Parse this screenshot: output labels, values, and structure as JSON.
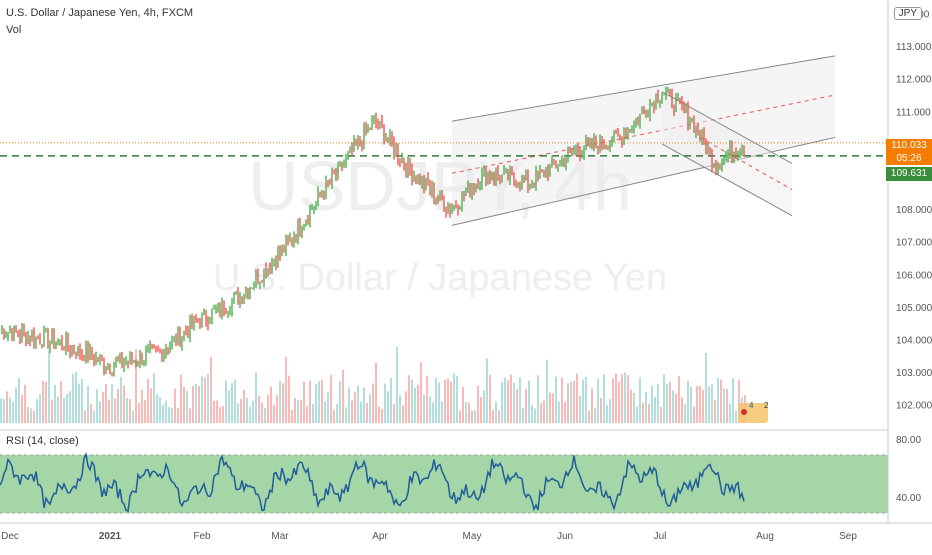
{
  "header": {
    "symbol_title": "U.S. Dollar / Japanese Yen, 4h, FXCM",
    "volume_label": "Vol",
    "currency": "JPY"
  },
  "watermark": {
    "ticker": "USDJPY, 4h",
    "description": "U.S. Dollar / Japanese Yen"
  },
  "rsi": {
    "label": "RSI (14, close)",
    "ticks": [
      "80.00",
      "40.00"
    ]
  },
  "price_axis": {
    "ticks": [
      "1 4.000",
      "113.000",
      "112.000",
      "111.000",
      "110.000",
      "109.000",
      "108.000",
      "107.000",
      "106.000",
      "105.000",
      "104.000",
      "103.000",
      "102.000"
    ],
    "current_price": "110.033",
    "countdown": "05:26",
    "line_price": "109.631"
  },
  "time_axis": {
    "ticks": [
      "Dec",
      "2021",
      "Feb",
      "Mar",
      "Apr",
      "May",
      "Jun",
      "Jul",
      "Aug",
      "Sep"
    ]
  },
  "events": {
    "badge_a": "4",
    "badge_b": "2"
  },
  "colors": {
    "up": "#26a69a",
    "up_candle": "#4caf50",
    "down": "#ef5350",
    "rsi_line": "#1f5c99",
    "rsi_band": "#a5d6a7",
    "level_line": "#2e7d32",
    "price_tag": "#f57c00",
    "line_tag": "#388e3c"
  },
  "chart_data": {
    "type": "line",
    "title": "U.S. Dollar / Japanese Yen, 4h, FXCM",
    "x": [
      "Dec",
      "Dec",
      "2021",
      "Jan",
      "Feb",
      "Feb",
      "Mar",
      "Mar",
      "Apr",
      "Apr",
      "Apr",
      "May",
      "May",
      "Jun",
      "Jun",
      "Jul",
      "Jul",
      "Jul",
      "Jul"
    ],
    "series": [
      {
        "name": "USDJPY",
        "values": [
          104.3,
          103.9,
          103.2,
          103.6,
          104.6,
          105.3,
          106.8,
          108.4,
          110.7,
          109.2,
          108.0,
          109.1,
          108.8,
          109.8,
          110.2,
          111.6,
          110.8,
          109.4,
          110.0
        ]
      }
    ],
    "ylim": [
      101.7,
      114.3
    ],
    "grid": false,
    "price_channel": {
      "start": {
        "date": "Apr",
        "low": 107.5,
        "high": 110.7
      },
      "end": {
        "date": "Aug",
        "low": 110.2,
        "high": 112.7
      }
    },
    "horizontal_level": 109.631,
    "last_price": 110.033,
    "rsi": {
      "range": [
        30,
        70
      ],
      "ticks": [
        80,
        40
      ]
    }
  }
}
